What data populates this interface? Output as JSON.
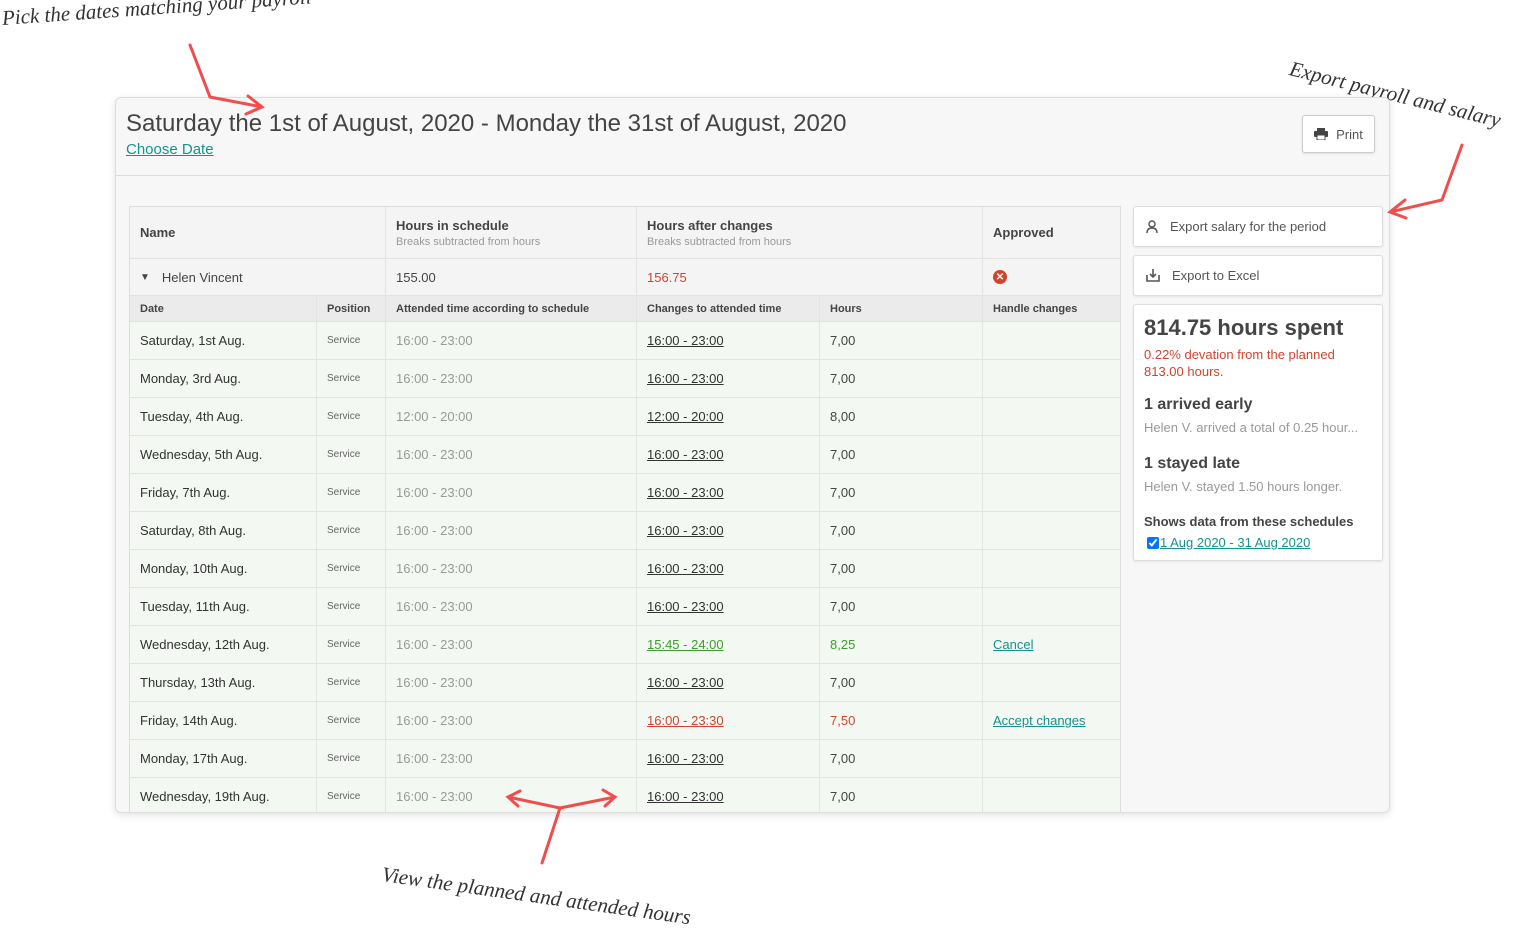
{
  "annotations": {
    "pick": "Pick the dates matching your payroll",
    "export": "Export payroll and salary",
    "view": "View the planned and attended hours"
  },
  "header": {
    "title": "Saturday the 1st of August, 2020 - Monday the 31st of August, 2020",
    "choose_date": "Choose Date",
    "print": "Print"
  },
  "table": {
    "headers": {
      "name": "Name",
      "sched": "Hours in schedule",
      "sched_sub": "Breaks subtracted from hours",
      "after": "Hours after changes",
      "after_sub": "Breaks subtracted from hours",
      "approved": "Approved"
    },
    "employee": {
      "name": "Helen Vincent",
      "sched": "155.00",
      "after": "156.75",
      "approved_icon": "x-circle-icon"
    },
    "subheaders": {
      "date": "Date",
      "position": "Position",
      "attended": "Attended time according to schedule",
      "changes": "Changes to attended time",
      "hours": "Hours",
      "handle": "Handle changes"
    },
    "rows": [
      {
        "date": "Saturday, 1st Aug.",
        "position": "Service",
        "sched": "16:00 - 23:00",
        "change": "16:00 - 23:00",
        "hours": "7,00",
        "action": "",
        "status": "normal"
      },
      {
        "date": "Monday, 3rd Aug.",
        "position": "Service",
        "sched": "16:00 - 23:00",
        "change": "16:00 - 23:00",
        "hours": "7,00",
        "action": "",
        "status": "normal"
      },
      {
        "date": "Tuesday, 4th Aug.",
        "position": "Service",
        "sched": "12:00 - 20:00",
        "change": "12:00 - 20:00",
        "hours": "8,00",
        "action": "",
        "status": "normal"
      },
      {
        "date": "Wednesday, 5th Aug.",
        "position": "Service",
        "sched": "16:00 - 23:00",
        "change": "16:00 - 23:00",
        "hours": "7,00",
        "action": "",
        "status": "normal"
      },
      {
        "date": "Friday, 7th Aug.",
        "position": "Service",
        "sched": "16:00 - 23:00",
        "change": "16:00 - 23:00",
        "hours": "7,00",
        "action": "",
        "status": "normal"
      },
      {
        "date": "Saturday, 8th Aug.",
        "position": "Service",
        "sched": "16:00 - 23:00",
        "change": "16:00 - 23:00",
        "hours": "7,00",
        "action": "",
        "status": "normal"
      },
      {
        "date": "Monday, 10th Aug.",
        "position": "Service",
        "sched": "16:00 - 23:00",
        "change": "16:00 - 23:00",
        "hours": "7,00",
        "action": "",
        "status": "normal"
      },
      {
        "date": "Tuesday, 11th Aug.",
        "position": "Service",
        "sched": "16:00 - 23:00",
        "change": "16:00 - 23:00",
        "hours": "7,00",
        "action": "",
        "status": "normal"
      },
      {
        "date": "Wednesday, 12th Aug.",
        "position": "Service",
        "sched": "16:00 - 23:00",
        "change": "15:45 - 24:00",
        "hours": "8,25",
        "action": "Cancel",
        "status": "approved"
      },
      {
        "date": "Thursday, 13th Aug.",
        "position": "Service",
        "sched": "16:00 - 23:00",
        "change": "16:00 - 23:00",
        "hours": "7,00",
        "action": "",
        "status": "normal"
      },
      {
        "date": "Friday, 14th Aug.",
        "position": "Service",
        "sched": "16:00 - 23:00",
        "change": "16:00 - 23:30",
        "hours": "7,50",
        "action": "Accept changes",
        "status": "pending"
      },
      {
        "date": "Monday, 17th Aug.",
        "position": "Service",
        "sched": "16:00 - 23:00",
        "change": "16:00 - 23:00",
        "hours": "7,00",
        "action": "",
        "status": "normal"
      },
      {
        "date": "Wednesday, 19th Aug.",
        "position": "Service",
        "sched": "16:00 - 23:00",
        "change": "16:00 - 23:00",
        "hours": "7,00",
        "action": "",
        "status": "normal"
      }
    ]
  },
  "side": {
    "export_salary": "Export salary for the period",
    "export_excel": "Export to Excel",
    "total": "814.75 hours spent",
    "deviation": "0.22% devation from the planned 813.00 hours.",
    "early_title": "1 arrived early",
    "early_text": "Helen V. arrived a total of 0.25 hour...",
    "late_title": "1 stayed late",
    "late_text": "Helen V. stayed 1.50 hours longer.",
    "schedules_title": "Shows data from these schedules",
    "schedule_link": "1 Aug 2020 - 31 Aug 2020",
    "schedule_checked": true
  },
  "colors": {
    "teal": "#14948c",
    "red": "#d0442c",
    "green": "#3aa02a",
    "arrow": "#f04d4d"
  }
}
